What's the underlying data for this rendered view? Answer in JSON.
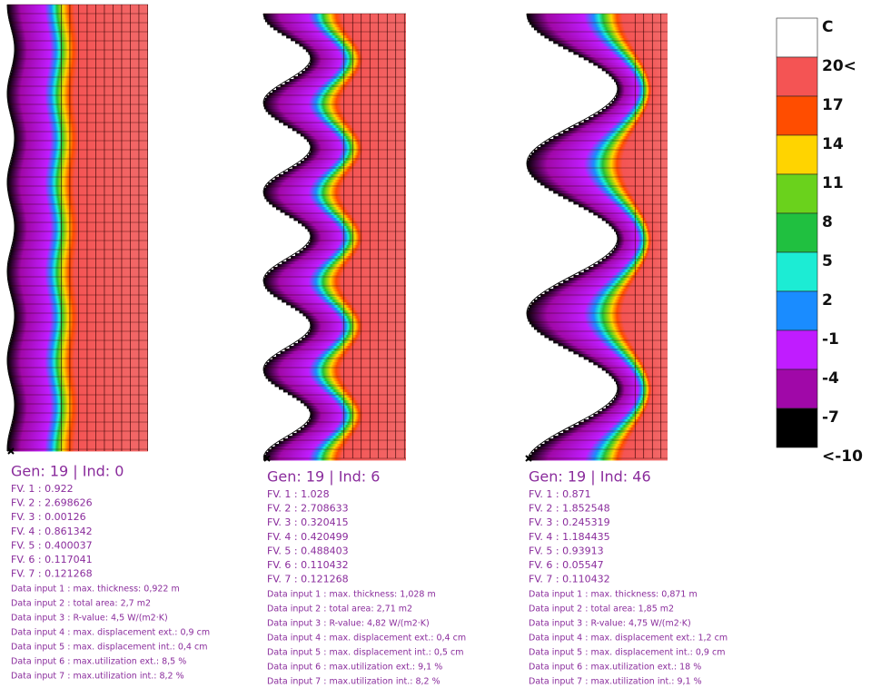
{
  "legend": {
    "title": "C",
    "labels": [
      "20<",
      "17",
      "14",
      "11",
      "8",
      "5",
      "2",
      "-1",
      "-4",
      "-7",
      "<-10"
    ],
    "colors": [
      "#ffffff",
      "#f45454",
      "#ff4d00",
      "#ffd400",
      "#6ad21c",
      "#20c040",
      "#1cecd4",
      "#1a8cff",
      "#c01cff",
      "#a008a8",
      "#000000"
    ]
  },
  "panels": [
    {
      "title": "Gen: 19 |  Ind: 0",
      "fv": [
        "FV. 1 : 0.922",
        "FV. 2 : 2.698626",
        "FV. 3 : 0.00126",
        "FV. 4 : 0.861342",
        "FV. 5 : 0.400037",
        "FV. 6 : 0.117041",
        "FV. 7 : 0.121268"
      ],
      "inputs": [
        "Data input 1 : max. thickness: 0,922 m",
        "Data input 2 : total area: 2,7 m2",
        "Data input 3 : R-value: 4,5 W/(m2·K)",
        "Data input 4 : max. displacement ext.: 0,9 cm",
        "Data input 5 : max. displacement int.: 0,4 cm",
        "Data input 6 : max.utilization ext.: 8,5 %",
        "Data input 7 : max.utilization int.: 8,2 %"
      ]
    },
    {
      "title": "Gen: 19 |  Ind: 6",
      "fv": [
        "FV. 1 : 1.028",
        "FV. 2 : 2.708633",
        "FV. 3 : 0.320415",
        "FV. 4 : 0.420499",
        "FV. 5 : 0.488403",
        "FV. 6 : 0.110432",
        "FV. 7 : 0.121268"
      ],
      "inputs": [
        "Data input 1 : max. thickness: 1,028 m",
        "Data input 2 : total area: 2,71 m2",
        "Data input 3 : R-value: 4,82 W/(m2·K)",
        "Data input 4 : max. displacement ext.: 0,4 cm",
        "Data input 5 : max. displacement int.: 0,5 cm",
        "Data input 6 : max.utilization ext.: 9,1 %",
        "Data input 7 : max.utilization int.: 8,2 %"
      ]
    },
    {
      "title": "Gen: 19 |  Ind: 46",
      "fv": [
        "FV. 1 : 0.871",
        "FV. 2 : 1.852548",
        "FV. 3 : 0.245319",
        "FV. 4 : 1.184435",
        "FV. 5 : 0.93913",
        "FV. 6 : 0.05547",
        "FV. 7 : 0.110432"
      ],
      "inputs": [
        "Data input 1 : max. thickness: 0,871 m",
        "Data input 2 : total area: 1,85 m2",
        "Data input 3 : R-value: 4,75 W/(m2·K)",
        "Data input 4 : max. displacement ext.: 1,2 cm",
        "Data input 5 : max. displacement int.: 0,9 cm",
        "Data input 6 : max.utilization ext.: 18 %",
        "Data input 7 : max.utilization int.: 9,1 %"
      ]
    }
  ]
}
